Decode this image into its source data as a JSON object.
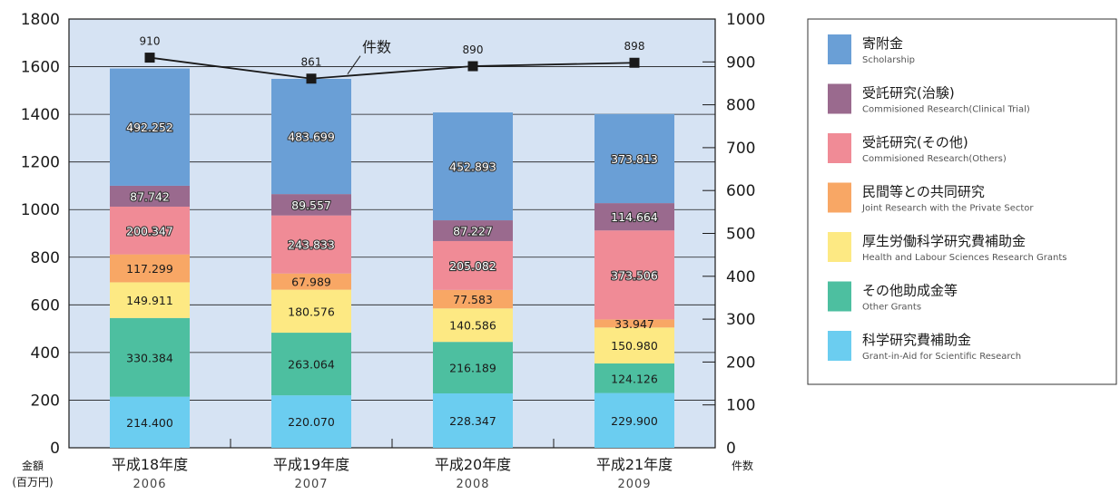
{
  "chart_data": {
    "type": "bar",
    "stacked": true,
    "categories": [
      "平成18年度",
      "平成19年度",
      "平成20年度",
      "平成21年度"
    ],
    "category_years": [
      "2006",
      "2007",
      "2008",
      "2009"
    ],
    "left_axis": {
      "title_lines": [
        "金額",
        "(百万円)"
      ],
      "ylim": [
        0,
        1800
      ],
      "ticks": [
        0,
        200,
        400,
        600,
        800,
        1000,
        1200,
        1400,
        1600,
        1800
      ]
    },
    "right_axis": {
      "title": "件数",
      "ylim": [
        0,
        1000
      ],
      "ticks": [
        0,
        100,
        200,
        300,
        400,
        500,
        600,
        700,
        800,
        900,
        1000
      ]
    },
    "series": [
      {
        "name": "科学研究費補助金",
        "name_en": "Grant-in-Aid for Scientific Research",
        "color": "#6bcdf0",
        "values": [
          214.4,
          220.07,
          228.347,
          229.9
        ],
        "labels": [
          "214.400",
          "220.070",
          "228.347",
          "229.900"
        ],
        "outlined": false
      },
      {
        "name": "その他助成金等",
        "name_en": "Other Grants",
        "color": "#4dbfa0",
        "values": [
          330.384,
          263.064,
          216.189,
          124.126
        ],
        "labels": [
          "330.384",
          "263.064",
          "216.189",
          "124.126"
        ],
        "outlined": false
      },
      {
        "name": "厚生労働科学研究費補助金",
        "name_en": "Health and Labour Sciences Research Grants",
        "color": "#fde983",
        "values": [
          149.911,
          180.576,
          140.586,
          150.98
        ],
        "labels": [
          "149.911",
          "180.576",
          "140.586",
          "150.980"
        ],
        "outlined": false
      },
      {
        "name": "民間等との共同研究",
        "name_en": "Joint Research with the Private Sector",
        "color": "#f8a765",
        "values": [
          117.299,
          67.989,
          77.583,
          33.947
        ],
        "labels": [
          "117.299",
          "67.989",
          "77.583",
          "33.947"
        ],
        "outlined": false
      },
      {
        "name": "受託研究(その他)",
        "name_en": "Commisioned Research(Others)",
        "color": "#f08b96",
        "values": [
          200.347,
          243.833,
          205.082,
          373.506
        ],
        "labels": [
          "200.347",
          "243.833",
          "205.082",
          "373.506"
        ],
        "outlined": true
      },
      {
        "name": "受託研究(治験)",
        "name_en": "Commisioned Research(Clinical Trial)",
        "color": "#9a6a8e",
        "values": [
          87.742,
          89.557,
          87.227,
          114.664
        ],
        "labels": [
          "87.742",
          "89.557",
          "87.227",
          "114.664"
        ],
        "outlined": true
      },
      {
        "name": "寄附金",
        "name_en": "Scholarship",
        "color": "#6a9fd6",
        "values": [
          492.252,
          483.699,
          452.893,
          373.813
        ],
        "labels": [
          "492.252",
          "483.699",
          "452.893",
          "373.813"
        ],
        "outlined": true
      }
    ],
    "line": {
      "name": "件数",
      "color": "#1a1a1a",
      "values": [
        910,
        861,
        890,
        898
      ],
      "labels": [
        "910",
        "861",
        "890",
        "898"
      ]
    },
    "legend_order": [
      6,
      5,
      4,
      3,
      2,
      1,
      0
    ],
    "legend_position": "right",
    "plot_background": "#d6e3f3",
    "grid": "horizontal"
  }
}
